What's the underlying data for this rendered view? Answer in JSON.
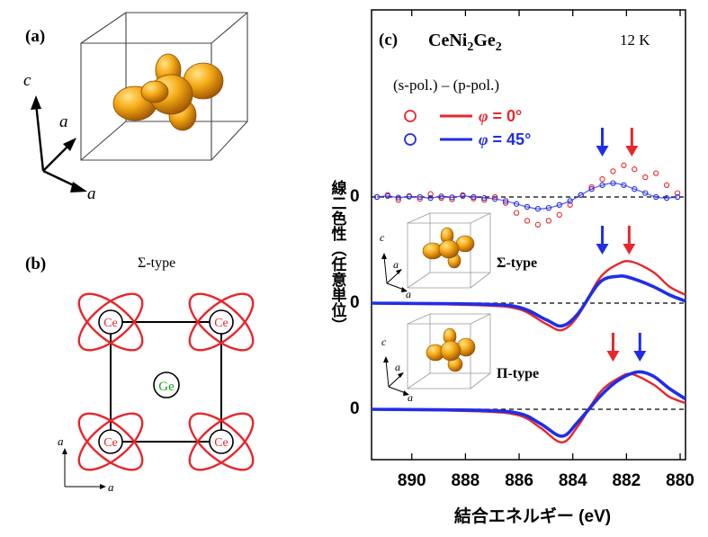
{
  "panel_a": {
    "label": "(a)",
    "axis_c": "c",
    "axis_a1": "a",
    "axis_a2": "a"
  },
  "panel_b": {
    "label": "(b)",
    "type_label": "Σ-type",
    "corner_atom": "Ce",
    "center_atom": "Ge",
    "axis_a_vertical": "a",
    "axis_a_horizontal": "a"
  },
  "panel_c": {
    "label": "(c)",
    "compound": {
      "base": "CeNi",
      "sub1": "2",
      "mid": "Ge",
      "sub2": "2"
    },
    "temperature": "12 K",
    "subtitle": "(s-pol.) – (p-pol.)",
    "legend": [
      {
        "symbol": "φ",
        "text": " = 0°",
        "color": "#e8262b"
      },
      {
        "symbol": "φ",
        "text": " = 45°",
        "color": "#1f2ee6"
      }
    ],
    "inset_sigma": {
      "label": "Σ-type",
      "c": "c",
      "a1": "a",
      "a2": "a"
    },
    "inset_pi": {
      "label": "Π-type",
      "c": "c",
      "a1": "a",
      "a2": "a"
    },
    "ylabel": "線二色性（任意単位）",
    "xlabel": "結合エネルギー (eV)",
    "zero_label": "0"
  },
  "colors": {
    "red": "#e8262b",
    "blue": "#1f2ee6",
    "orbital_gold": "#f0a010",
    "orbital_dark": "#a35a00"
  },
  "chart_data": {
    "type": "line",
    "title": "CeNi2Ge2",
    "xlabel": "結合エネルギー (eV)",
    "ylabel": "線二色性（任意単位）",
    "xlim": [
      891.5,
      879.8
    ],
    "x_reversed": true,
    "xticks": [
      890,
      888,
      886,
      884,
      882,
      880
    ],
    "y_zero_ticks": [
      "0",
      "0",
      "0"
    ],
    "panels": [
      {
        "name": "experiment",
        "series": [
          {
            "name": "φ = 0°",
            "style": "circles",
            "color": "#e8262b",
            "x": [
              891.3,
              890.9,
              890.5,
              890.1,
              889.7,
              889.3,
              888.9,
              888.5,
              888.1,
              887.7,
              887.3,
              886.9,
              886.5,
              886.1,
              885.7,
              885.3,
              884.9,
              884.5,
              884.1,
              883.7,
              883.3,
              882.9,
              882.5,
              882.1,
              881.7,
              881.3,
              880.9,
              880.5,
              880.1
            ],
            "y": [
              0.0,
              0.1,
              -0.15,
              0.05,
              -0.1,
              0.15,
              -0.05,
              -0.12,
              0.1,
              -0.08,
              -0.15,
              0.0,
              -0.3,
              -0.8,
              -1.2,
              -1.4,
              -1.2,
              -0.9,
              -0.4,
              0.1,
              0.5,
              0.9,
              1.3,
              1.6,
              1.4,
              1.0,
              1.2,
              0.6,
              0.2
            ]
          },
          {
            "name": "φ = 45°",
            "style": "circles",
            "color": "#1f2ee6",
            "x": [
              891.3,
              890.9,
              890.5,
              890.1,
              889.7,
              889.3,
              888.9,
              888.5,
              888.1,
              887.7,
              887.3,
              886.9,
              886.5,
              886.1,
              885.7,
              885.3,
              884.9,
              884.5,
              884.1,
              883.7,
              883.3,
              882.9,
              882.5,
              882.1,
              881.7,
              881.3,
              880.9,
              880.5,
              880.1
            ],
            "y": [
              0.0,
              0.05,
              -0.03,
              0.02,
              0.0,
              -0.05,
              0.03,
              -0.02,
              0.05,
              0.0,
              -0.05,
              -0.1,
              -0.2,
              -0.35,
              -0.5,
              -0.6,
              -0.55,
              -0.4,
              -0.2,
              0.1,
              0.4,
              0.6,
              0.7,
              0.6,
              0.4,
              0.2,
              0.0,
              -0.05,
              0.0
            ]
          }
        ]
      },
      {
        "name": "Σ-type calculation",
        "series": [
          {
            "name": "φ = 0°",
            "color": "#e8262b",
            "x": [
              891.5,
              887.5,
              886.0,
              885.0,
              884.4,
              883.8,
              883.0,
              882.3,
              881.8,
              881.0,
              880.4,
              879.8
            ],
            "y": [
              0.0,
              -0.1,
              -0.3,
              -1.0,
              -1.3,
              -0.6,
              1.2,
              1.9,
              2.0,
              1.5,
              0.8,
              0.4
            ]
          },
          {
            "name": "φ = 45°",
            "color": "#1f2ee6",
            "x": [
              891.5,
              887.5,
              886.0,
              885.0,
              884.4,
              883.8,
              883.0,
              882.3,
              881.8,
              881.0,
              880.4,
              879.8
            ],
            "y": [
              0.0,
              -0.05,
              -0.2,
              -0.8,
              -1.1,
              -0.5,
              1.0,
              1.3,
              1.2,
              0.8,
              0.4,
              0.1
            ]
          }
        ]
      },
      {
        "name": "Π-type calculation",
        "series": [
          {
            "name": "φ = 0°",
            "color": "#e8262b",
            "x": [
              891.5,
              887.5,
              886.0,
              885.2,
              884.4,
              883.8,
              883.0,
              882.3,
              881.8,
              881.0,
              880.4,
              879.8
            ],
            "y": [
              0.0,
              -0.1,
              -0.3,
              -0.9,
              -1.6,
              -0.8,
              0.8,
              1.5,
              1.7,
              1.2,
              0.6,
              0.3
            ]
          },
          {
            "name": "φ = 45°",
            "color": "#1f2ee6",
            "x": [
              891.5,
              887.5,
              886.0,
              885.2,
              884.4,
              883.8,
              883.0,
              882.3,
              881.6,
              881.0,
              880.4,
              879.8
            ],
            "y": [
              0.0,
              -0.05,
              -0.2,
              -0.7,
              -1.3,
              -0.6,
              0.6,
              1.4,
              1.8,
              1.6,
              1.0,
              0.5
            ]
          }
        ]
      }
    ],
    "arrows": [
      {
        "panel": "experiment",
        "x": 882.9,
        "color": "#1f2ee6"
      },
      {
        "panel": "experiment",
        "x": 881.8,
        "color": "#e8262b"
      },
      {
        "panel": "Σ-type calculation",
        "x": 882.9,
        "color": "#1f2ee6"
      },
      {
        "panel": "Σ-type calculation",
        "x": 881.9,
        "color": "#e8262b"
      },
      {
        "panel": "Π-type calculation",
        "x": 882.5,
        "color": "#e8262b"
      },
      {
        "panel": "Π-type calculation",
        "x": 881.5,
        "color": "#1f2ee6"
      }
    ]
  }
}
